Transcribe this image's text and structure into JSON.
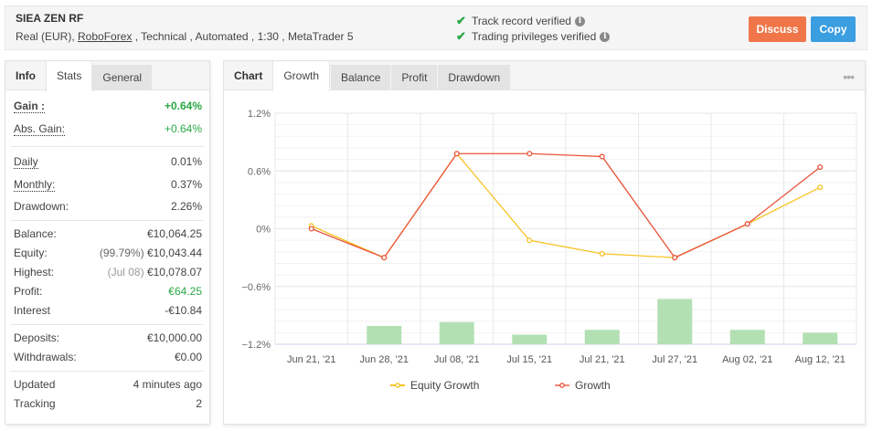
{
  "header": {
    "title": "SIEA ZEN RF",
    "subtitle_prefix": "Real (EUR), ",
    "broker": "RoboForex",
    "subtitle_suffix": " , Technical , Automated , 1:30 , MetaTrader 5",
    "verifications": [
      {
        "label": "Track record verified"
      },
      {
        "label": "Trading privileges verified"
      }
    ],
    "buttons": {
      "discuss": "Discuss",
      "copy": "Copy"
    },
    "colors": {
      "discuss": "#f0764a",
      "copy": "#3a9ee0",
      "check": "#2aa745"
    }
  },
  "left_panel": {
    "tabs": [
      {
        "label": "Info",
        "state": "plain"
      },
      {
        "label": "Stats",
        "state": "active"
      },
      {
        "label": "General",
        "state": "inactive"
      }
    ],
    "gain": {
      "label": "Gain :",
      "value": "+0.64%"
    },
    "abs_gain": {
      "label": "Abs. Gain:",
      "value": "+0.64%"
    },
    "daily": {
      "label": "Daily",
      "value": "0.01%"
    },
    "monthly": {
      "label": "Monthly:",
      "value": "0.37%"
    },
    "drawdown": {
      "label": "Drawdown:",
      "value": "2.26%"
    },
    "balance": {
      "label": "Balance:",
      "value": "€10,064.25"
    },
    "equity": {
      "label": "Equity:",
      "note": "(99.79%)",
      "value": "€10,043.44"
    },
    "highest": {
      "label": "Highest:",
      "note": "(Jul 08)",
      "value": "€10,078.07"
    },
    "profit": {
      "label": "Profit:",
      "value": "€64.25"
    },
    "interest": {
      "label": "Interest",
      "value": "-€10.84"
    },
    "deposits": {
      "label": "Deposits:",
      "value": "€10,000.00"
    },
    "withdrawals": {
      "label": "Withdrawals:",
      "value": "€0.00"
    },
    "updated": {
      "label": "Updated",
      "value": "4 minutes ago"
    },
    "tracking": {
      "label": "Tracking",
      "value": "2"
    }
  },
  "right_panel": {
    "tabs": [
      {
        "label": "Chart",
        "state": "plain"
      },
      {
        "label": "Growth",
        "state": "active"
      },
      {
        "label": "Balance",
        "state": "inactive"
      },
      {
        "label": "Profit",
        "state": "inactive"
      },
      {
        "label": "Drawdown",
        "state": "inactive"
      }
    ],
    "more_icon": "•••"
  },
  "chart_data": {
    "type": "line",
    "title": "",
    "xlabel": "",
    "ylabel": "",
    "categories": [
      "Jun 21, '21",
      "Jun 28, '21",
      "Jul 08, '21",
      "Jul 15, '21",
      "Jul 21, '21",
      "Jul 27, '21",
      "Aug 02, '21",
      "Aug 12, '21"
    ],
    "y_ticks": [
      "1.2%",
      "0.6%",
      "0%",
      "-0.6%",
      "-1.2%"
    ],
    "ylim": [
      -1.2,
      1.2
    ],
    "grid": true,
    "legend_position": "bottom",
    "series": [
      {
        "name": "Equity Growth",
        "type": "line",
        "color": "#f7c325",
        "values": [
          0.03,
          -0.3,
          0.78,
          -0.12,
          -0.26,
          -0.3,
          0.05,
          0.43
        ]
      },
      {
        "name": "Growth",
        "type": "line",
        "color": "#e8533a",
        "values": [
          0.0,
          -0.3,
          0.78,
          0.78,
          0.75,
          -0.3,
          0.05,
          0.64
        ]
      },
      {
        "name": "Drawdown bars",
        "type": "bar",
        "color": "#b3e0b3",
        "values": [
          0.0,
          0.19,
          0.23,
          0.1,
          0.15,
          0.47,
          0.15,
          0.12
        ]
      }
    ]
  }
}
